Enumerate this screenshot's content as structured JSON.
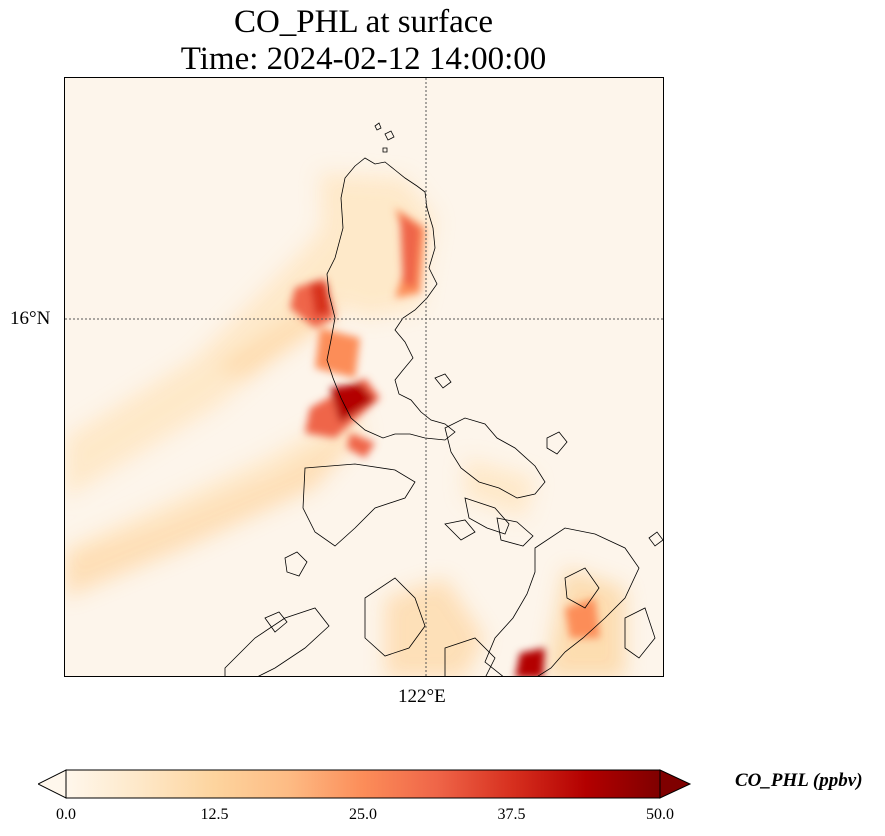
{
  "title": {
    "line1": "CO_PHL at surface",
    "line2": "Time: 2024-02-12 14:00:00"
  },
  "axes": {
    "lat_tick": "16°N",
    "lon_tick": "122°E"
  },
  "colorbar": {
    "label": "CO_PHL (ppbv)",
    "ticks": [
      "0.0",
      "12.5",
      "25.0",
      "37.5",
      "50.0"
    ],
    "min": 0,
    "max": 50,
    "extend": "both",
    "colormap": "OrRd",
    "colors": [
      "#fff7ec",
      "#fee8c8",
      "#fdd49e",
      "#fdbb84",
      "#fc8d59",
      "#ef6548",
      "#d7301f",
      "#b30000",
      "#7f0000"
    ]
  },
  "map": {
    "gridlines": "dotted",
    "projection": "plate carree"
  }
}
